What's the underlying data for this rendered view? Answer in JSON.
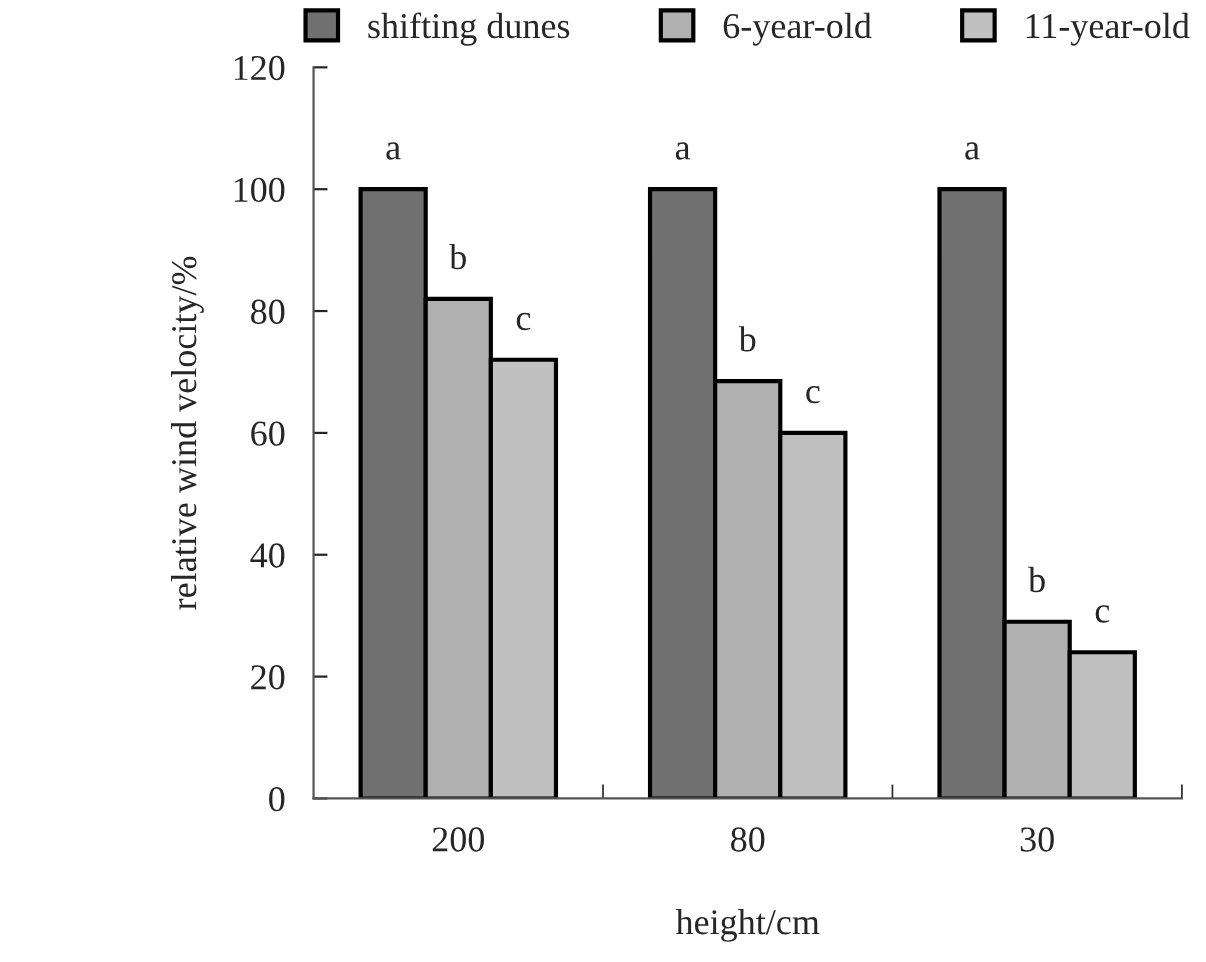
{
  "chart_data": {
    "type": "bar",
    "xlabel": "height/cm",
    "ylabel": "relative wind velocity/%",
    "categories": [
      "200",
      "80",
      "30"
    ],
    "series": [
      {
        "name": "shifting dunes",
        "color": "#707070",
        "values": [
          100,
          100,
          100
        ],
        "value_labels": [
          "a",
          "a",
          "a"
        ]
      },
      {
        "name": "6-year-old",
        "color": "#b0b0b0",
        "values": [
          82,
          68.5,
          29
        ],
        "value_labels": [
          "b",
          "b",
          "b"
        ]
      },
      {
        "name": "11-year-old",
        "color": "#c0c0c0",
        "values": [
          72,
          60,
          24
        ],
        "value_labels": [
          "c",
          "c",
          "c"
        ]
      }
    ],
    "ylim": [
      0,
      120
    ],
    "yticks": [
      0,
      20,
      40,
      60,
      80,
      100,
      120
    ],
    "grid": false,
    "legend": "top"
  }
}
